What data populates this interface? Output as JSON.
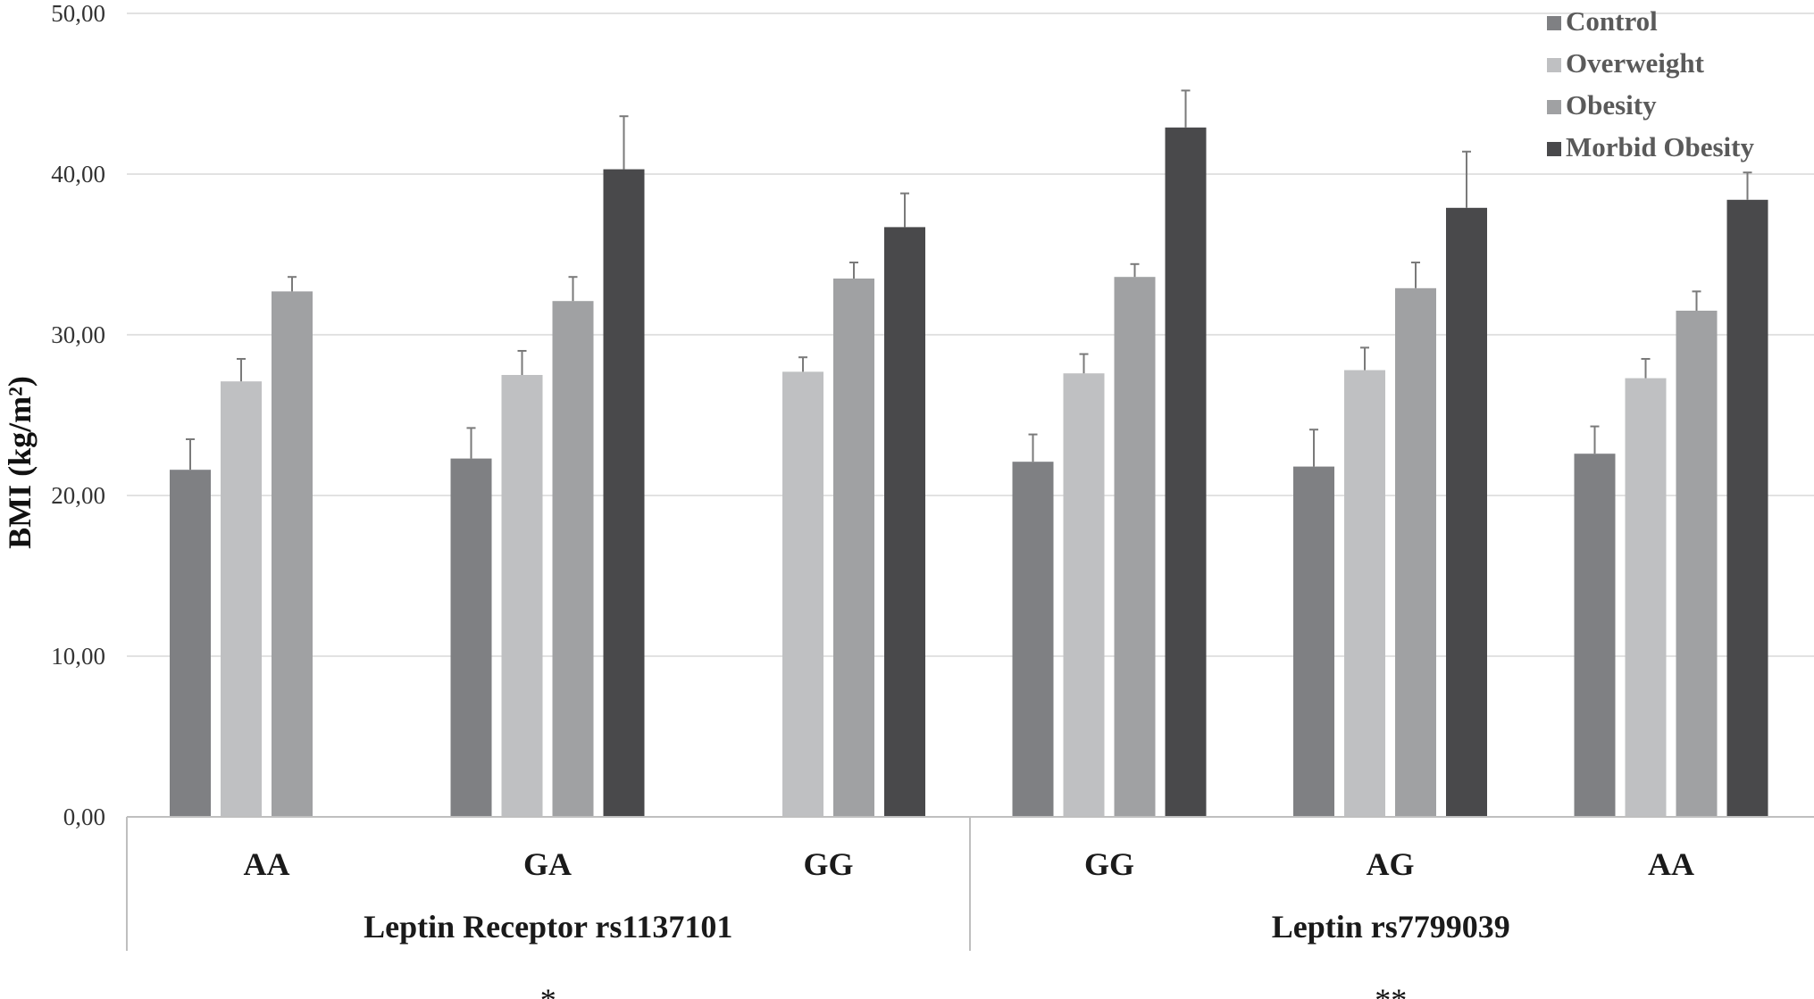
{
  "chart_data": {
    "type": "bar",
    "ylabel": "BMI (kg/m²)",
    "ylim": [
      0,
      50
    ],
    "yticks": [
      "0,00",
      "10,00",
      "20,00",
      "30,00",
      "40,00",
      "50,00"
    ],
    "grid": true,
    "legend_position": "top-right",
    "categories": [
      "AA",
      "GA",
      "GG",
      "GG",
      "AG",
      "AA"
    ],
    "groups": [
      {
        "label": "Leptin Receptor rs1137101",
        "span": [
          0,
          2
        ],
        "annotation": "*"
      },
      {
        "label": "Leptin rs7799039",
        "span": [
          3,
          5
        ],
        "annotation": "**"
      }
    ],
    "series": [
      {
        "name": "Control",
        "color": "#7f8083",
        "values": [
          21.6,
          22.3,
          null,
          22.1,
          21.8,
          22.6
        ],
        "errors": [
          1.9,
          1.9,
          null,
          1.7,
          2.3,
          1.7
        ]
      },
      {
        "name": "Overweight",
        "color": "#bfc0c2",
        "values": [
          27.1,
          27.5,
          27.7,
          27.6,
          27.8,
          27.3
        ],
        "errors": [
          1.4,
          1.5,
          0.9,
          1.2,
          1.4,
          1.2
        ]
      },
      {
        "name": "Obesity",
        "color": "#a0a1a3",
        "values": [
          32.7,
          32.1,
          33.5,
          33.6,
          32.9,
          31.5
        ],
        "errors": [
          0.9,
          1.5,
          1.0,
          0.8,
          1.6,
          1.2
        ]
      },
      {
        "name": "Morbid Obesity",
        "color": "#49494b",
        "values": [
          null,
          40.3,
          36.7,
          42.9,
          37.9,
          38.4
        ],
        "errors": [
          null,
          3.3,
          2.1,
          2.3,
          3.5,
          1.7
        ]
      }
    ]
  }
}
